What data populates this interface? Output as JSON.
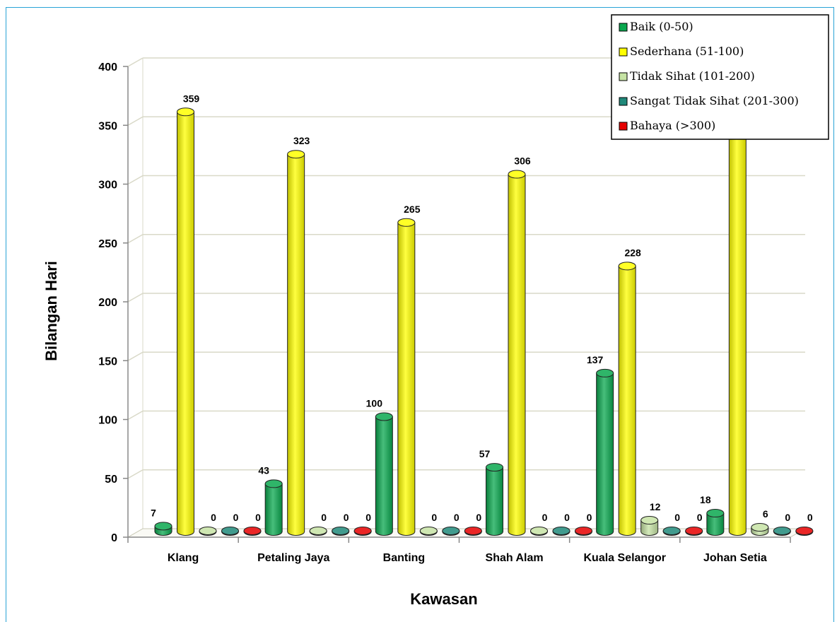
{
  "chart_data": {
    "type": "bar",
    "title": "",
    "xlabel": "Kawasan",
    "ylabel": "Bilangan Hari",
    "ylim": [
      0,
      400
    ],
    "yticks": [
      0,
      50,
      100,
      150,
      200,
      250,
      300,
      350,
      400
    ],
    "grid": true,
    "legend_position": "top-right",
    "categories": [
      "Klang",
      "Petaling Jaya",
      "Banting",
      "Shah Alam",
      "Kuala Selangor",
      "Johan Setia"
    ],
    "series": [
      {
        "name": "Baik (0-50)",
        "color": "#0aa84f",
        "values": [
          7,
          43,
          100,
          57,
          137,
          18
        ]
      },
      {
        "name": "Sederhana (51-100)",
        "color": "#ffff00",
        "values": [
          359,
          323,
          265,
          306,
          228,
          341
        ]
      },
      {
        "name": "Tidak Sihat (101-200)",
        "color": "#c6e3a4",
        "values": [
          0,
          0,
          0,
          0,
          12,
          6
        ]
      },
      {
        "name": "Sangat Tidak Sihat (201-300)",
        "color": "#20897a",
        "values": [
          0,
          0,
          0,
          0,
          0,
          0
        ]
      },
      {
        "name": "Bahaya (>300)",
        "color": "#e60000",
        "values": [
          0,
          0,
          0,
          0,
          0,
          0
        ]
      }
    ]
  }
}
